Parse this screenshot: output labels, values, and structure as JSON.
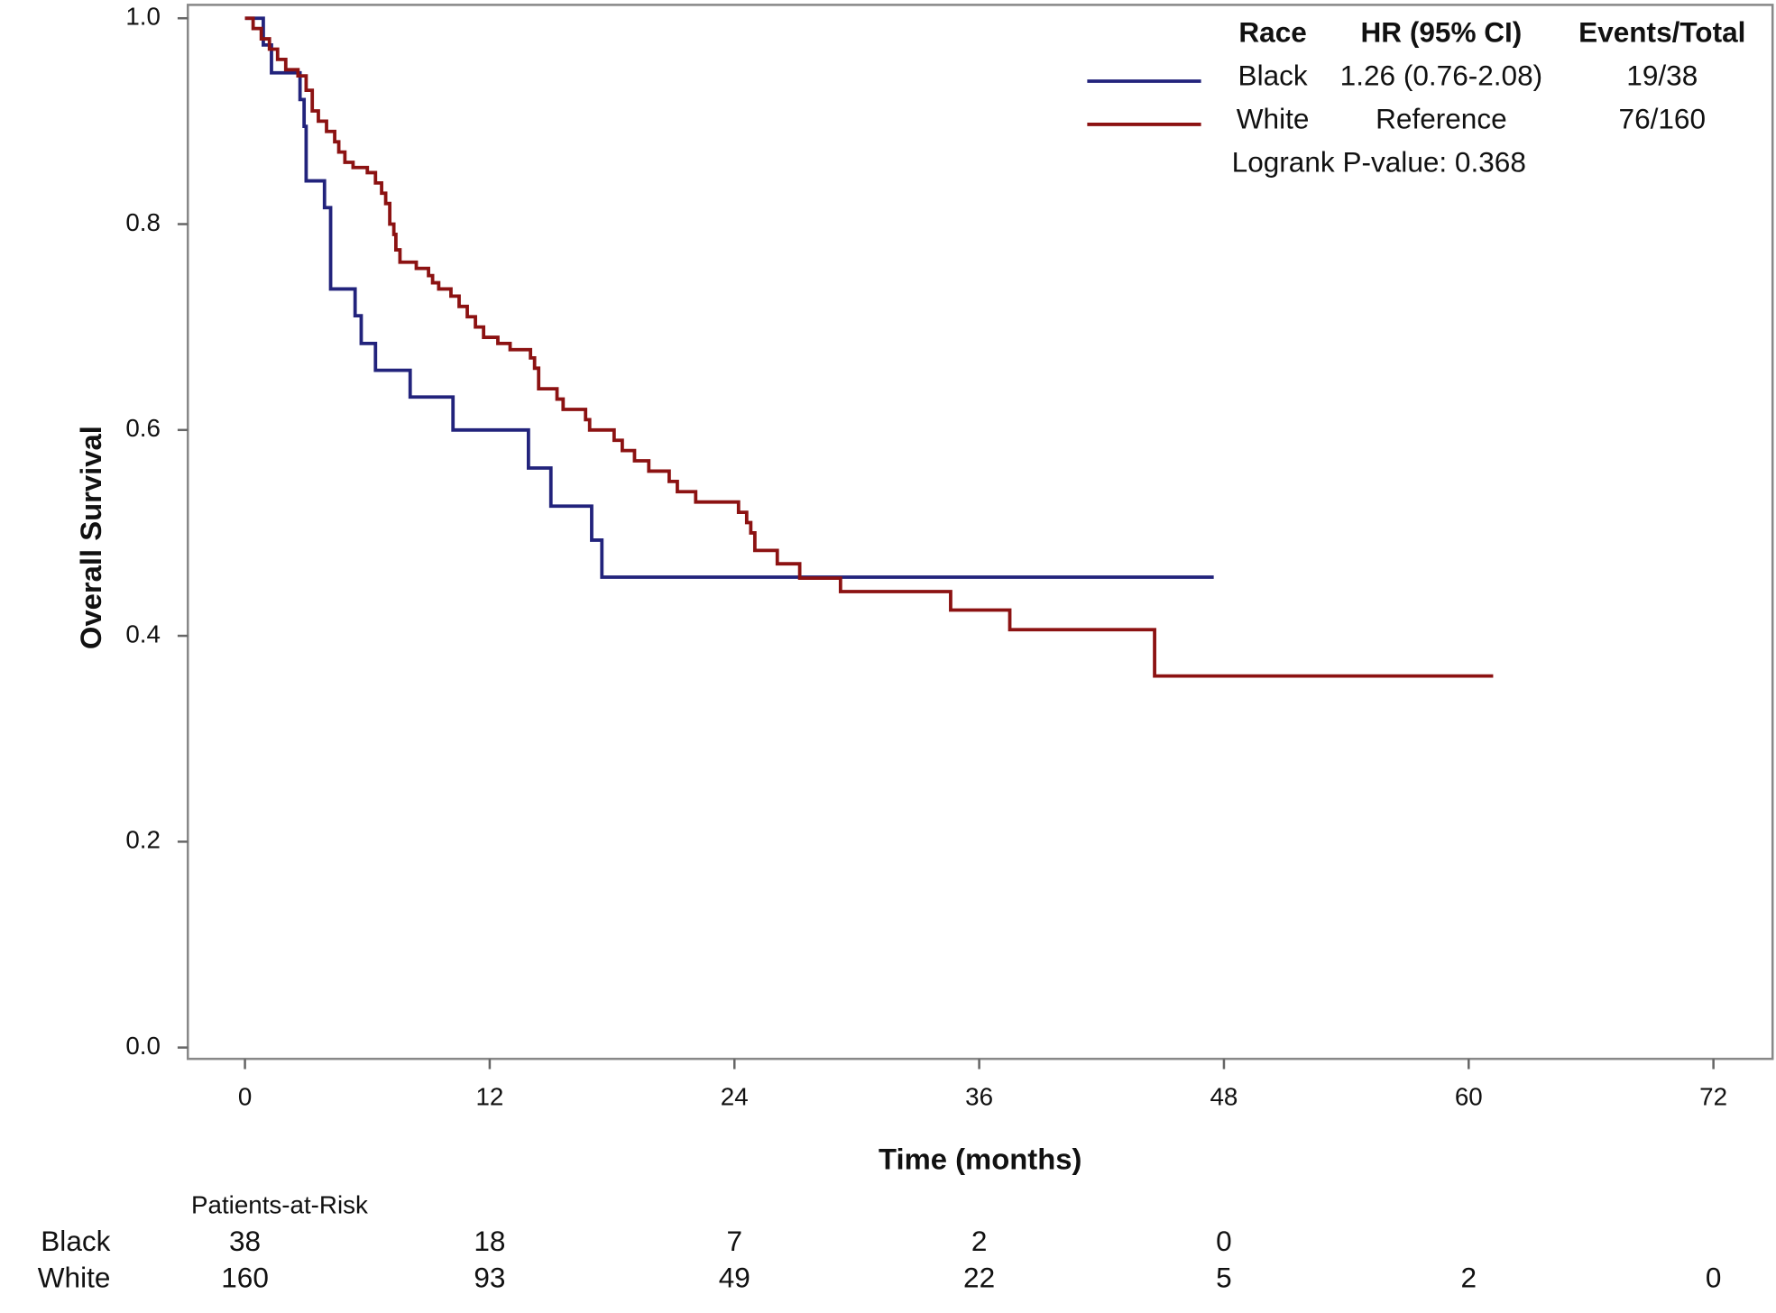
{
  "chart_data": {
    "type": "step",
    "x_label": "Time (months)",
    "y_label": "Overall Survival",
    "xlim": [
      -2.8,
      74.9
    ],
    "ylim": [
      -0.011,
      1.013
    ],
    "xticks": [
      0,
      12,
      24,
      36,
      48,
      60,
      72
    ],
    "yticks": [
      {
        "value": 0,
        "label": "0.0"
      },
      {
        "value": 0.2,
        "label": "0.2"
      },
      {
        "value": 0.4,
        "label": "0.4"
      },
      {
        "value": 0.6,
        "label": "0.6"
      },
      {
        "value": 0.8,
        "label": "0.8"
      },
      {
        "value": 1,
        "label": "1.0"
      }
    ],
    "series": [
      {
        "name": "Black",
        "color": "#22237c",
        "x": [
          0,
          0.9,
          1.3,
          2.7,
          2.9,
          3.0,
          3.9,
          4.2,
          5.4,
          5.7,
          6.4,
          8.1,
          10.2,
          13.9,
          15.0,
          17.0,
          17.5,
          47.5
        ],
        "values": [
          1.0,
          0.974,
          0.947,
          0.921,
          0.895,
          0.842,
          0.816,
          0.737,
          0.711,
          0.684,
          0.658,
          0.632,
          0.6,
          0.563,
          0.526,
          0.493,
          0.457,
          0.457
        ]
      },
      {
        "name": "White",
        "color": "#8c1212",
        "x": [
          0,
          0.4,
          0.8,
          1.2,
          1.6,
          2.0,
          2.6,
          3.0,
          3.3,
          3.6,
          4.0,
          4.4,
          4.6,
          4.9,
          5.3,
          6.0,
          6.4,
          6.7,
          6.9,
          7.1,
          7.3,
          7.4,
          7.6,
          8.4,
          9.0,
          9.2,
          9.5,
          10.1,
          10.5,
          10.9,
          11.3,
          11.7,
          12.4,
          13.0,
          14.0,
          14.2,
          14.4,
          15.3,
          15.6,
          16.7,
          16.9,
          18.1,
          18.5,
          19.1,
          19.8,
          20.8,
          21.2,
          22.1,
          24.2,
          24.6,
          24.8,
          25.0,
          26.1,
          27.2,
          29.2,
          34.6,
          37.5,
          44.6,
          61.2
        ],
        "values": [
          1.0,
          0.99,
          0.98,
          0.97,
          0.96,
          0.95,
          0.944,
          0.93,
          0.91,
          0.9,
          0.89,
          0.88,
          0.87,
          0.86,
          0.855,
          0.85,
          0.84,
          0.83,
          0.82,
          0.8,
          0.79,
          0.775,
          0.763,
          0.757,
          0.75,
          0.743,
          0.737,
          0.73,
          0.72,
          0.71,
          0.7,
          0.69,
          0.684,
          0.678,
          0.67,
          0.66,
          0.64,
          0.63,
          0.62,
          0.61,
          0.6,
          0.59,
          0.58,
          0.57,
          0.56,
          0.55,
          0.54,
          0.53,
          0.52,
          0.51,
          0.5,
          0.483,
          0.47,
          0.456,
          0.443,
          0.425,
          0.406,
          0.361,
          0.361
        ]
      }
    ],
    "legend": {
      "headers": [
        "Race",
        "HR (95% CI)",
        "Events/Total"
      ],
      "rows": [
        [
          "1.26 (0.76-2.08)",
          "19/38"
        ],
        [
          "Reference",
          "76/160"
        ]
      ],
      "note": "Logrank P-value: 0.368"
    },
    "risk_table": {
      "title": "Patients-at-Risk",
      "rows": [
        [
          38,
          18,
          7,
          2,
          0
        ],
        [
          160,
          93,
          49,
          22,
          5,
          2,
          0
        ]
      ]
    }
  }
}
